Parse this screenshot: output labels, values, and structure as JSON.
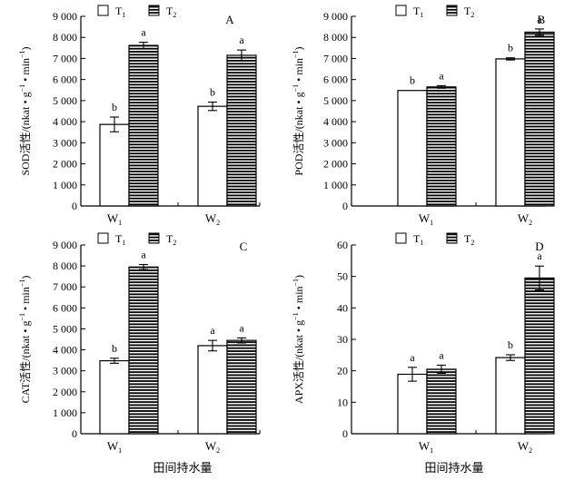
{
  "figure": {
    "xlabel": "田间持水量",
    "legend": {
      "t1": "T",
      "t1_sub": "1",
      "t2": "T",
      "t2_sub": "2"
    }
  },
  "chart_data": [
    {
      "type": "bar",
      "panel": "A",
      "ylabel_pre": "SOD活性/(nkat • g",
      "ylabel_sup1": "−1",
      "ylabel_mid": " • min",
      "ylabel_sup2": "−1",
      "ylabel_post": ")",
      "ylim": [
        0,
        9000
      ],
      "yticks": [
        0,
        1000,
        2000,
        3000,
        4000,
        5000,
        6000,
        7000,
        8000,
        9000
      ],
      "ytick_labels": [
        "0",
        "1 000",
        "2 000",
        "3 000",
        "4 000",
        "5 000",
        "6 000",
        "7 000",
        "8 000",
        "9 000"
      ],
      "categories": [
        {
          "main": "W",
          "sub": "1"
        },
        {
          "main": "W",
          "sub": "2"
        }
      ],
      "series": [
        {
          "name": "T1",
          "values": [
            3870,
            4730
          ],
          "errors": [
            350,
            200
          ],
          "letters": [
            "b",
            "b"
          ]
        },
        {
          "name": "T2",
          "values": [
            7620,
            7150
          ],
          "errors": [
            150,
            250
          ],
          "letters": [
            "a",
            "a"
          ]
        }
      ]
    },
    {
      "type": "bar",
      "panel": "B",
      "ylabel_pre": "POD活性/(nkat • g",
      "ylabel_sup1": "−1",
      "ylabel_mid": " • min",
      "ylabel_sup2": "−1",
      "ylabel_post": ")",
      "ylim": [
        0,
        9000
      ],
      "yticks": [
        0,
        1000,
        2000,
        3000,
        4000,
        5000,
        6000,
        7000,
        8000,
        9000
      ],
      "ytick_labels": [
        "0",
        "1 000",
        "2 000",
        "3 000",
        "4 000",
        "5 000",
        "6 000",
        "7 000",
        "8 000",
        "9 000"
      ],
      "categories": [
        {
          "main": "W",
          "sub": "1"
        },
        {
          "main": "W",
          "sub": "2"
        }
      ],
      "series": [
        {
          "name": "T1",
          "values": [
            5480,
            6980
          ],
          "errors": [
            0,
            50
          ],
          "letters": [
            "b",
            "b"
          ]
        },
        {
          "name": "T2",
          "values": [
            5650,
            8250
          ],
          "errors": [
            60,
            150
          ],
          "letters": [
            "a",
            "a"
          ]
        }
      ]
    },
    {
      "type": "bar",
      "panel": "C",
      "ylabel_pre": "CAT活性/(nkat • g",
      "ylabel_sup1": "−1",
      "ylabel_mid": " • min",
      "ylabel_sup2": "−1",
      "ylabel_post": ")",
      "ylim": [
        0,
        9000
      ],
      "yticks": [
        0,
        1000,
        2000,
        3000,
        4000,
        5000,
        6000,
        7000,
        8000,
        9000
      ],
      "ytick_labels": [
        "0",
        "1 000",
        "2 000",
        "3 000",
        "4 000",
        "5 000",
        "6 000",
        "7 000",
        "8 000",
        "9 000"
      ],
      "categories": [
        {
          "main": "W",
          "sub": "1"
        },
        {
          "main": "W",
          "sub": "2"
        }
      ],
      "series": [
        {
          "name": "T1",
          "values": [
            3480,
            4200
          ],
          "errors": [
            120,
            250
          ],
          "letters": [
            "b",
            "a"
          ]
        },
        {
          "name": "T2",
          "values": [
            7950,
            4450
          ],
          "errors": [
            120,
            120
          ],
          "letters": [
            "a",
            "a"
          ]
        }
      ]
    },
    {
      "type": "bar",
      "panel": "D",
      "ylabel_pre": "APX活性/(nkat • g",
      "ylabel_sup1": "−1",
      "ylabel_mid": " • min",
      "ylabel_sup2": "−1",
      "ylabel_post": ")",
      "ylim": [
        0,
        60
      ],
      "yticks": [
        0,
        10,
        20,
        30,
        40,
        50,
        60
      ],
      "ytick_labels": [
        "0",
        "10",
        "20",
        "30",
        "40",
        "50",
        "60"
      ],
      "categories": [
        {
          "main": "W",
          "sub": "1"
        },
        {
          "main": "W",
          "sub": "2"
        }
      ],
      "series": [
        {
          "name": "T1",
          "values": [
            18.9,
            24.2
          ],
          "errors": [
            2.2,
            0.9
          ],
          "letters": [
            "a",
            "b"
          ]
        },
        {
          "name": "T2",
          "values": [
            20.5,
            49.5
          ],
          "errors": [
            1.3,
            3.8
          ],
          "letters": [
            "a",
            "a"
          ]
        }
      ]
    }
  ]
}
